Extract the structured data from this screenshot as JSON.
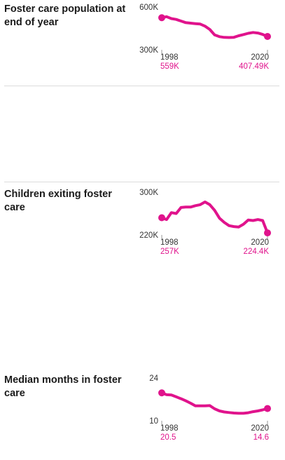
{
  "accent_color": "#e0138c",
  "chart_data": [
    {
      "type": "line",
      "title": "Foster care population at end of year",
      "ylim": [
        300000,
        600000
      ],
      "y_ticks": [
        "600K",
        "300K"
      ],
      "x": [
        1998,
        1999,
        2000,
        2001,
        2002,
        2003,
        2004,
        2005,
        2006,
        2007,
        2008,
        2009,
        2010,
        2011,
        2012,
        2013,
        2014,
        2015,
        2016,
        2017,
        2018,
        2019,
        2020
      ],
      "values": [
        559000,
        567000,
        552000,
        545000,
        532000,
        519000,
        515000,
        511000,
        508000,
        491000,
        464000,
        420000,
        406000,
        400000,
        399000,
        401000,
        413000,
        423000,
        433000,
        440000,
        435000,
        424000,
        407490
      ],
      "start_label": {
        "year": "1998",
        "value": "559K"
      },
      "end_label": {
        "year": "2020",
        "value": "407.49K"
      }
    },
    {
      "type": "line",
      "title": "Children exiting foster care",
      "ylim": [
        220000,
        300000
      ],
      "y_ticks": [
        "300K",
        "220K"
      ],
      "x": [
        1998,
        1999,
        2000,
        2001,
        2002,
        2003,
        2004,
        2005,
        2006,
        2007,
        2008,
        2009,
        2010,
        2011,
        2012,
        2013,
        2014,
        2015,
        2016,
        2017,
        2018,
        2019,
        2020
      ],
      "values": [
        257000,
        253000,
        268000,
        266000,
        279000,
        280000,
        280000,
        283000,
        285000,
        291000,
        285000,
        273000,
        256000,
        247000,
        240000,
        238000,
        237000,
        243000,
        252000,
        251000,
        253000,
        251000,
        224400
      ],
      "start_label": {
        "year": "1998",
        "value": "257K"
      },
      "end_label": {
        "year": "2020",
        "value": "224.4K"
      }
    },
    {
      "type": "line",
      "title": "Median months in foster care",
      "ylim": [
        10,
        24
      ],
      "y_ticks": [
        "24",
        "10"
      ],
      "x": [
        1998,
        1999,
        2000,
        2001,
        2002,
        2003,
        2004,
        2005,
        2006,
        2007,
        2008,
        2009,
        2010,
        2011,
        2012,
        2013,
        2014,
        2015,
        2016,
        2017,
        2018,
        2019,
        2020
      ],
      "values": [
        20.5,
        19.8,
        19.7,
        19.0,
        18.3,
        17.5,
        16.6,
        15.6,
        15.6,
        15.6,
        15.7,
        14.5,
        13.7,
        13.3,
        13.1,
        12.9,
        12.8,
        12.8,
        13.0,
        13.4,
        13.7,
        14.1,
        14.6
      ],
      "start_label": {
        "year": "1998",
        "value": "20.5"
      },
      "end_label": {
        "year": "2020",
        "value": "14.6"
      }
    }
  ]
}
